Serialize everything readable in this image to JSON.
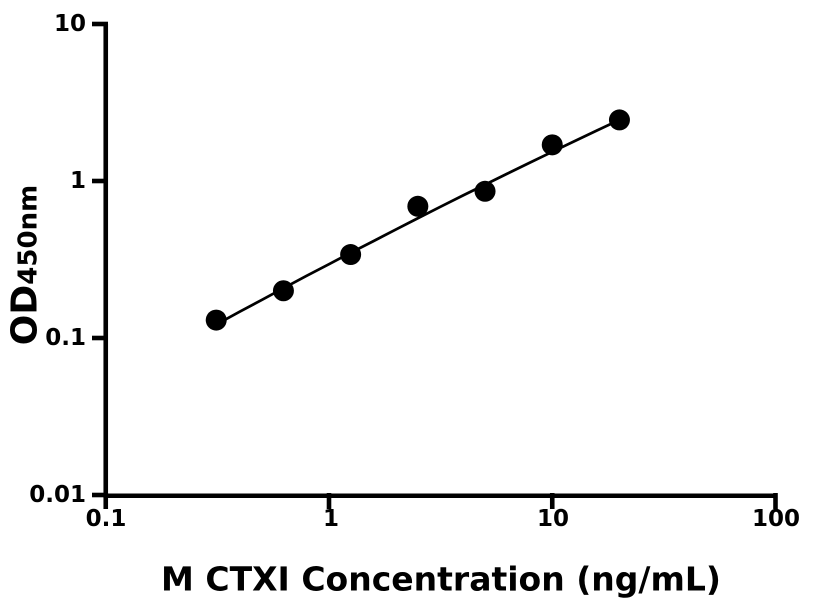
{
  "chart_data": {
    "type": "scatter",
    "xlabel": "M CTXI Concentration (ng/mL)",
    "ylabel": "OD",
    "ylabel_subscript": "450nm",
    "xscale": "log",
    "yscale": "log",
    "xlim": [
      0.1,
      100
    ],
    "ylim": [
      0.01,
      10
    ],
    "grid": false,
    "legend": false,
    "background_color": "#ffffff",
    "axis_color": "#000000",
    "marker_color": "#000000",
    "line_color": "#000000",
    "xticks": {
      "values": [
        0.1,
        1,
        10,
        100
      ],
      "labels": [
        "0.1",
        "1",
        "10",
        "100"
      ]
    },
    "yticks": {
      "values": [
        10,
        1,
        0.1,
        0.01
      ],
      "labels": [
        "10",
        "1",
        "0.1",
        "0.01"
      ]
    },
    "series": [
      {
        "name": "standard-curve-points",
        "marker": "filled-circle",
        "x": [
          0.3125,
          0.625,
          1.25,
          2.5,
          5,
          10,
          20
        ],
        "y": [
          0.13,
          0.2,
          0.34,
          0.69,
          0.86,
          1.7,
          2.45
        ]
      }
    ],
    "fit_curve": {
      "name": "4pl-fit-line",
      "x": [
        0.313,
        0.398,
        0.501,
        0.631,
        0.794,
        1.0,
        1.259,
        1.585,
        1.995,
        2.512,
        3.162,
        3.981,
        5.012,
        6.31,
        7.943,
        10.0,
        12.59,
        15.85,
        20.0
      ],
      "y": [
        0.122,
        0.147,
        0.175,
        0.209,
        0.249,
        0.295,
        0.351,
        0.415,
        0.492,
        0.581,
        0.686,
        0.808,
        0.95,
        1.116,
        1.31,
        1.535,
        1.796,
        2.097,
        2.45
      ]
    }
  }
}
